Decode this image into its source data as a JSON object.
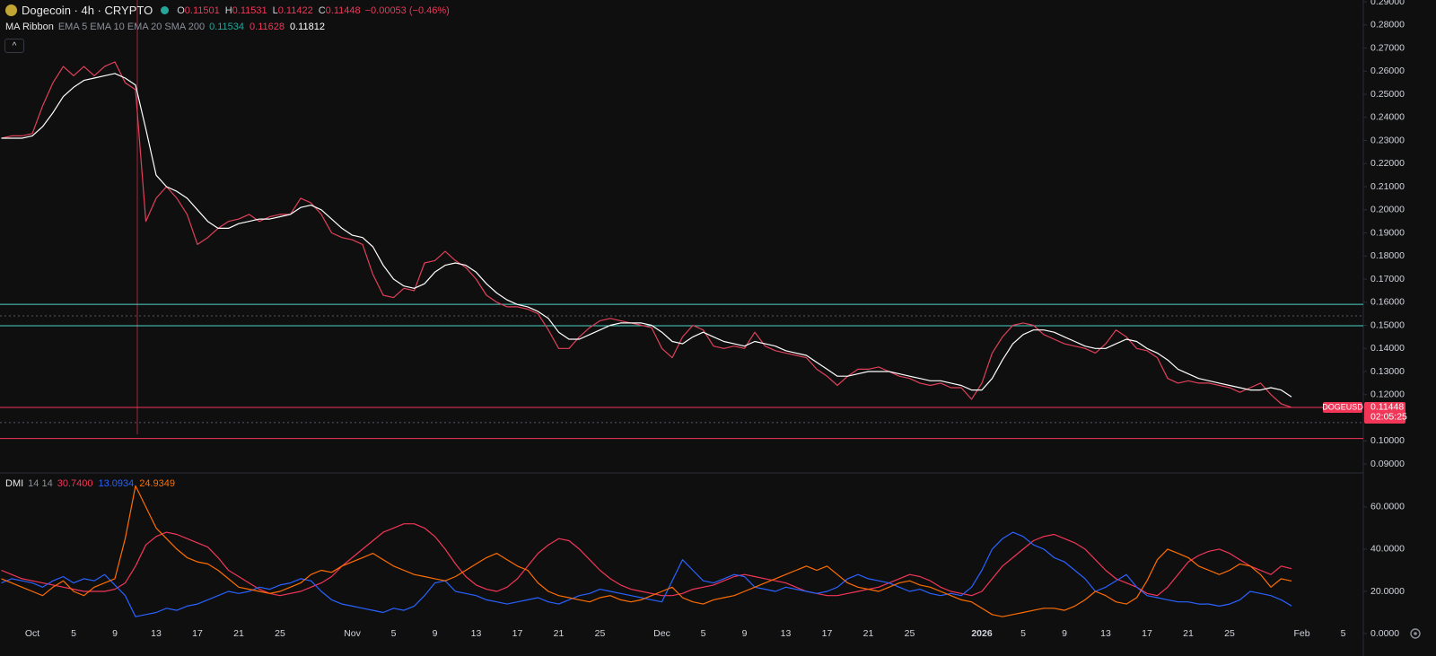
{
  "chart_data": [
    {
      "type": "line",
      "title": "Dogecoin · 4h · CRYPTO",
      "ohlc": {
        "labels": [
          "O",
          "H",
          "L",
          "C"
        ],
        "values": [
          0.11501,
          0.11531,
          0.11422,
          0.11448
        ],
        "color": "#f23658"
      },
      "change": "−0.00053 (−0.46%)",
      "indicator": {
        "name": "MA Ribbon",
        "params": "EMA 5 EMA 10 EMA 20 SMA 200",
        "values": [
          0.11534,
          0.11628,
          0.11812
        ],
        "colors": [
          "#26a69a",
          "#f23658",
          "#ffffff"
        ]
      },
      "ylim": [
        0.0865,
        0.2908
      ],
      "yticks": [
        {
          "value": 0.09,
          "label": "0.09000"
        },
        {
          "value": 0.1,
          "label": "0.10000"
        },
        {
          "value": 0.11,
          "label": "0.11000"
        },
        {
          "value": 0.12,
          "label": "0.12000"
        },
        {
          "value": 0.13,
          "label": "0.13000"
        },
        {
          "value": 0.14,
          "label": "0.14000"
        },
        {
          "value": 0.15,
          "label": "0.15000"
        },
        {
          "value": 0.16,
          "label": "0.16000"
        },
        {
          "value": 0.17,
          "label": "0.17000"
        },
        {
          "value": 0.18,
          "label": "0.18000"
        },
        {
          "value": 0.19,
          "label": "0.19000"
        },
        {
          "value": 0.2,
          "label": "0.20000"
        },
        {
          "value": 0.21,
          "label": "0.21000"
        },
        {
          "value": 0.22,
          "label": "0.22000"
        },
        {
          "value": 0.23,
          "label": "0.23000"
        },
        {
          "value": 0.24,
          "label": "0.24000"
        },
        {
          "value": 0.25,
          "label": "0.25000"
        },
        {
          "value": 0.26,
          "label": "0.26000"
        },
        {
          "value": 0.27,
          "label": "0.27000"
        },
        {
          "value": 0.28,
          "label": "0.28000"
        },
        {
          "value": 0.29,
          "label": "0.29000"
        }
      ],
      "grid": false,
      "levels": [
        {
          "value": 0.1591,
          "color": "#4dd0c4",
          "dashed": false
        },
        {
          "value": 0.1498,
          "color": "#4dd0c4",
          "dashed": false
        },
        {
          "value": 0.101,
          "color": "#f23658",
          "dashed": false
        },
        {
          "value": 0.1541,
          "color": "#555a66",
          "dashed": true
        },
        {
          "value": 0.1079,
          "color": "#555a66",
          "dashed": true
        }
      ],
      "last_price": {
        "symbol": "DOGEUSD",
        "value": 0.11448,
        "countdown": "02:05:25",
        "color": "#f23658"
      },
      "series": [
        {
          "color": "#e0405a",
          "values": [
            0.231,
            0.232,
            0.232,
            0.233,
            0.245,
            0.255,
            0.262,
            0.258,
            0.262,
            0.258,
            0.262,
            0.264,
            0.255,
            0.252,
            0.195,
            0.205,
            0.21,
            0.205,
            0.198,
            0.185,
            0.188,
            0.192,
            0.195,
            0.196,
            0.198,
            0.195,
            0.197,
            0.198,
            0.198,
            0.205,
            0.203,
            0.198,
            0.19,
            0.188,
            0.187,
            0.185,
            0.172,
            0.163,
            0.162,
            0.166,
            0.165,
            0.177,
            0.178,
            0.182,
            0.178,
            0.175,
            0.17,
            0.163,
            0.16,
            0.158,
            0.158,
            0.157,
            0.155,
            0.148,
            0.14,
            0.14,
            0.145,
            0.149,
            0.152,
            0.153,
            0.152,
            0.151,
            0.15,
            0.149,
            0.14,
            0.136,
            0.145,
            0.15,
            0.148,
            0.141,
            0.14,
            0.141,
            0.14,
            0.147,
            0.141,
            0.139,
            0.138,
            0.137,
            0.136,
            0.131,
            0.128,
            0.124,
            0.128,
            0.131,
            0.131,
            0.132,
            0.13,
            0.128,
            0.127,
            0.125,
            0.124,
            0.125,
            0.123,
            0.123,
            0.118,
            0.125,
            0.138,
            0.145,
            0.15,
            0.151,
            0.15,
            0.146,
            0.144,
            0.142,
            0.141,
            0.14,
            0.138,
            0.142,
            0.148,
            0.145,
            0.14,
            0.139,
            0.136,
            0.127,
            0.125,
            0.126,
            0.125,
            0.125,
            0.124,
            0.123,
            0.121,
            0.123,
            0.125,
            0.12,
            0.116,
            0.1145,
            null,
            null,
            null,
            null,
            null,
            null
          ]
        },
        {
          "color": "#ffffff",
          "values": [
            0.231,
            0.231,
            0.231,
            0.232,
            0.236,
            0.242,
            0.249,
            0.253,
            0.256,
            0.257,
            0.258,
            0.259,
            0.257,
            0.254,
            0.235,
            0.215,
            0.21,
            0.208,
            0.205,
            0.2,
            0.195,
            0.192,
            0.192,
            0.194,
            0.195,
            0.196,
            0.196,
            0.197,
            0.198,
            0.201,
            0.202,
            0.2,
            0.196,
            0.192,
            0.189,
            0.188,
            0.184,
            0.176,
            0.17,
            0.167,
            0.166,
            0.168,
            0.173,
            0.176,
            0.177,
            0.176,
            0.173,
            0.168,
            0.164,
            0.161,
            0.159,
            0.158,
            0.156,
            0.153,
            0.147,
            0.144,
            0.144,
            0.146,
            0.148,
            0.15,
            0.151,
            0.151,
            0.151,
            0.15,
            0.147,
            0.143,
            0.142,
            0.145,
            0.147,
            0.145,
            0.143,
            0.142,
            0.141,
            0.143,
            0.142,
            0.141,
            0.139,
            0.138,
            0.137,
            0.134,
            0.131,
            0.128,
            0.128,
            0.129,
            0.13,
            0.13,
            0.13,
            0.129,
            0.128,
            0.127,
            0.126,
            0.126,
            0.125,
            0.124,
            0.122,
            0.122,
            0.127,
            0.135,
            0.142,
            0.146,
            0.148,
            0.148,
            0.147,
            0.145,
            0.143,
            0.141,
            0.14,
            0.14,
            0.142,
            0.144,
            0.143,
            0.14,
            0.138,
            0.135,
            0.131,
            0.129,
            0.127,
            0.126,
            0.125,
            0.124,
            0.123,
            0.122,
            0.122,
            0.123,
            0.122,
            0.119,
            null,
            null,
            null,
            null,
            null,
            null
          ]
        }
      ]
    },
    {
      "type": "line",
      "indicator": {
        "name": "DMI",
        "params": "14 14",
        "values": [
          "30.7400",
          "13.0934",
          "24.9349"
        ]
      },
      "categories": [
        null,
        null,
        null,
        "Oct",
        null,
        null,
        null,
        "5",
        null,
        null,
        null,
        "9",
        null,
        null,
        null,
        "13",
        null,
        null,
        null,
        "17",
        null,
        null,
        null,
        "21",
        null,
        null,
        null,
        "25",
        null,
        null,
        null,
        null,
        null,
        null,
        "Nov",
        null,
        null,
        null,
        "5",
        null,
        null,
        null,
        "9",
        null,
        null,
        null,
        "13",
        null,
        null,
        null,
        "17",
        null,
        null,
        null,
        "21",
        null,
        null,
        null,
        "25",
        null,
        null,
        null,
        null,
        null,
        "Dec",
        null,
        null,
        null,
        "5",
        null,
        null,
        null,
        "9",
        null,
        null,
        null,
        "13",
        null,
        null,
        null,
        "17",
        null,
        null,
        null,
        "21",
        null,
        null,
        null,
        "25",
        null,
        null,
        null,
        null,
        null,
        null,
        "2026",
        null,
        null,
        null,
        "5",
        null,
        null,
        null,
        "9",
        null,
        null,
        null,
        "13",
        null,
        null,
        null,
        "17",
        null,
        null,
        null,
        "21",
        null,
        null,
        null,
        "25",
        null,
        null,
        null,
        null,
        null,
        null,
        "Feb",
        null,
        null,
        null,
        "5",
        null
      ],
      "ylim": [
        -2.55,
        75.7
      ],
      "yticks": [
        {
          "value": 0,
          "label": "0.0000"
        },
        {
          "value": 20,
          "label": "20.0000"
        },
        {
          "value": 40,
          "label": "40.0000"
        },
        {
          "value": 60,
          "label": "60.0000"
        }
      ],
      "grid": false,
      "series": [
        {
          "color": "#f23658",
          "values": [
            30,
            28,
            26,
            25,
            24,
            23,
            22,
            21,
            20,
            20,
            20,
            21,
            24,
            32,
            42,
            46,
            48,
            47,
            45,
            43,
            41,
            36,
            30,
            27,
            24,
            21,
            19,
            18,
            19,
            20,
            22,
            24,
            27,
            32,
            36,
            40,
            44,
            48,
            50,
            52,
            52,
            50,
            46,
            40,
            33,
            27,
            23,
            21,
            20,
            22,
            26,
            32,
            38,
            42,
            45,
            44,
            40,
            35,
            30,
            26,
            23,
            21,
            20,
            19,
            18,
            18,
            19,
            21,
            22,
            23,
            25,
            27,
            28,
            27,
            26,
            25,
            24,
            22,
            20,
            19,
            18,
            18,
            19,
            20,
            21,
            22,
            24,
            26,
            28,
            27,
            25,
            22,
            20,
            19,
            18,
            20,
            26,
            32,
            36,
            40,
            44,
            46,
            47,
            45,
            43,
            40,
            35,
            30,
            26,
            24,
            22,
            19,
            18,
            22,
            28,
            34,
            37,
            39,
            40,
            38,
            35,
            32,
            30,
            28,
            32,
            30.74,
            null,
            null,
            null,
            null,
            null,
            null
          ]
        },
        {
          "color": "#2962ff",
          "values": [
            24,
            26,
            25,
            24,
            22,
            25,
            27,
            24,
            26,
            25,
            28,
            23,
            18,
            8,
            9,
            10,
            12,
            11,
            13,
            14,
            16,
            18,
            20,
            19,
            20,
            22,
            21,
            23,
            24,
            26,
            25,
            20,
            16,
            14,
            13,
            12,
            11,
            10,
            12,
            11,
            13,
            18,
            24,
            25,
            20,
            19,
            18,
            16,
            15,
            14,
            15,
            16,
            17,
            15,
            14,
            16,
            18,
            19,
            21,
            20,
            19,
            18,
            17,
            16,
            15,
            25,
            35,
            30,
            25,
            24,
            26,
            28,
            27,
            22,
            21,
            20,
            22,
            21,
            20,
            19,
            20,
            22,
            26,
            28,
            26,
            25,
            24,
            22,
            20,
            21,
            19,
            18,
            19,
            18,
            22,
            30,
            40,
            45,
            48,
            46,
            42,
            40,
            36,
            34,
            30,
            26,
            20,
            22,
            25,
            28,
            22,
            18,
            17,
            16,
            15,
            15,
            14,
            14,
            13,
            14,
            16,
            20,
            19,
            18,
            16,
            13.0934,
            null,
            null,
            null,
            null,
            null,
            null
          ]
        },
        {
          "color": "#ff6d00",
          "values": [
            26,
            24,
            22,
            20,
            18,
            22,
            25,
            20,
            18,
            22,
            24,
            26,
            45,
            70,
            60,
            50,
            45,
            40,
            36,
            34,
            33,
            30,
            26,
            22,
            21,
            20,
            19,
            20,
            22,
            24,
            28,
            30,
            29,
            32,
            34,
            36,
            38,
            35,
            32,
            30,
            28,
            27,
            26,
            25,
            27,
            30,
            33,
            36,
            38,
            35,
            32,
            30,
            24,
            20,
            18,
            17,
            16,
            15,
            17,
            18,
            16,
            15,
            16,
            18,
            20,
            22,
            17,
            15,
            14,
            16,
            17,
            18,
            20,
            22,
            24,
            26,
            28,
            30,
            32,
            30,
            32,
            28,
            24,
            22,
            21,
            20,
            22,
            24,
            25,
            23,
            22,
            20,
            18,
            16,
            15,
            12,
            9,
            8,
            9,
            10,
            11,
            12,
            12,
            11,
            13,
            16,
            20,
            18,
            15,
            14,
            17,
            25,
            35,
            40,
            38,
            36,
            32,
            30,
            28,
            30,
            33,
            32,
            28,
            22,
            26,
            24.9349,
            null,
            null,
            null,
            null,
            null,
            null
          ]
        }
      ]
    }
  ]
}
